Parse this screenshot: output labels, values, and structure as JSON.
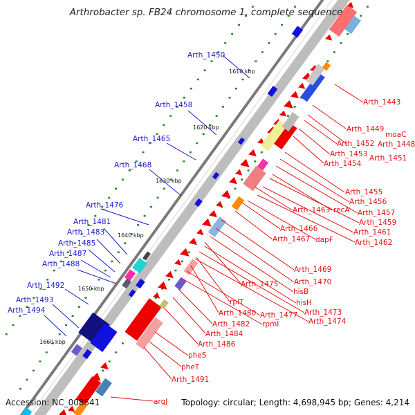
{
  "map": {
    "title": "Arthrobacter sp. FB24 chromosome 1, complete sequence",
    "accession": "Accession: NC_008541",
    "topology": "Topology: circular; Length: 4,698,945 bp; Genes: 4,214"
  },
  "scale_labels": [
    "1610 kbp",
    "1620 kbp",
    "1630 kbp",
    "1640 kbp",
    "1650 kbp",
    "1660 kbp"
  ],
  "genes_left": [
    "Arth_1450",
    "Arth_1458",
    "Arth_1465",
    "Arth_1468",
    "Arth_1476",
    "Arth_1481",
    "Arth_1483",
    "Arth_1485",
    "Arth_1487",
    "Arth_1488",
    "Arth_1492",
    "Arth_1493",
    "Arth_1494"
  ],
  "genes_right": [
    "Arth_1443",
    "Arth_1449",
    "moaC",
    "Arth_1448",
    "Arth_1452",
    "Arth_1451",
    "Arth_1453",
    "Arth_1454",
    "Arth_1455",
    "Arth_1456",
    "Arth_1457",
    "recA",
    "Arth_1463",
    "Arth_1459",
    "Arth_1461",
    "Arth_1466",
    "Arth_1462",
    "Arth_1467",
    "dapF",
    "Arth_1469",
    "Arth_1470",
    "Arth_1475",
    "hisB",
    "hisH",
    "rplT",
    "Arth_1480",
    "Arth_1477",
    "rpmI",
    "Arth_1473",
    "Arth_1474",
    "Arth_1482",
    "Arth_1484",
    "Arth_1486",
    "pheS",
    "pheT",
    "Arth_1491",
    "argJ"
  ],
  "colors": {
    "left_label": "#1a1acc",
    "right_label": "#e01010",
    "backbone": "#777777",
    "forward_gene": "#1010e0",
    "reverse_gene": "#ee0000",
    "tick": "#1c8a1c"
  }
}
